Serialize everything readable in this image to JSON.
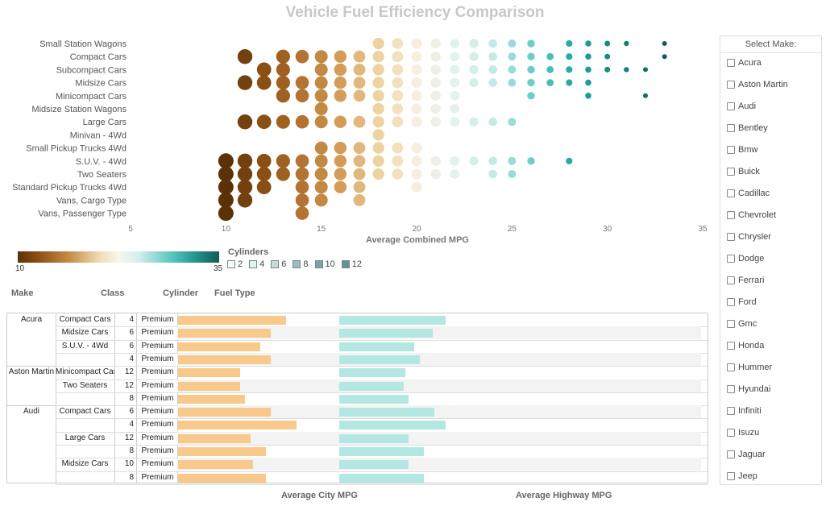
{
  "title": "Vehicle Fuel Efficiency Comparison",
  "chart_data": {
    "type": "scatter",
    "xlabel": "Average Combined MPG",
    "xlim": [
      5,
      35
    ],
    "xticks": [
      5,
      10,
      15,
      20,
      25,
      30,
      35
    ],
    "categories": [
      "Small Station Wagons",
      "Compact Cars",
      "Subcompact Cars",
      "Midsize Cars",
      "Minicompact Cars",
      "Midsize Station Wagons",
      "Large Cars",
      "Minivan - 4Wd",
      "Small Pickup Trucks 4Wd",
      "S.U.V. - 4Wd",
      "Two Seaters",
      "Standard Pickup Trucks 4Wd",
      "Vans, Cargo Type",
      "Vans, Passenger Type"
    ],
    "color_scale": {
      "min": 10,
      "max": 35
    },
    "points": [
      {
        "class": "Small Station Wagons",
        "mpg": [
          18,
          19,
          20,
          21,
          22,
          23,
          24,
          25,
          26,
          28,
          29,
          30,
          31,
          33
        ]
      },
      {
        "class": "Compact Cars",
        "mpg": [
          11,
          13,
          14,
          15,
          16,
          17,
          18,
          19,
          20,
          21,
          22,
          23,
          24,
          25,
          26,
          27,
          28,
          29,
          30,
          33
        ]
      },
      {
        "class": "Subcompact Cars",
        "mpg": [
          12,
          13,
          15,
          16,
          17,
          18,
          19,
          20,
          21,
          22,
          23,
          24,
          25,
          26,
          27,
          28,
          29,
          30,
          31,
          32
        ]
      },
      {
        "class": "Midsize Cars",
        "mpg": [
          11,
          12,
          13,
          14,
          15,
          16,
          17,
          18,
          19,
          20,
          21,
          22,
          23,
          24,
          25,
          26,
          27,
          28,
          29
        ]
      },
      {
        "class": "Minicompact Cars",
        "mpg": [
          13,
          14,
          15,
          16,
          17,
          18,
          19,
          20,
          21,
          22,
          26,
          29,
          32
        ]
      },
      {
        "class": "Midsize Station Wagons",
        "mpg": [
          15,
          18,
          19,
          20,
          21,
          22
        ]
      },
      {
        "class": "Large Cars",
        "mpg": [
          11,
          12,
          13,
          14,
          15,
          16,
          17,
          18,
          19,
          20,
          21,
          22,
          23,
          24,
          25
        ]
      },
      {
        "class": "Minivan - 4Wd",
        "mpg": [
          18
        ]
      },
      {
        "class": "Small Pickup Trucks 4Wd",
        "mpg": [
          15,
          16,
          17,
          18,
          19,
          20
        ]
      },
      {
        "class": "S.U.V. - 4Wd",
        "mpg": [
          10,
          11,
          12,
          13,
          14,
          15,
          16,
          17,
          18,
          19,
          20,
          21,
          22,
          23,
          24,
          25,
          26,
          28
        ]
      },
      {
        "class": "Two Seaters",
        "mpg": [
          10,
          11,
          12,
          13,
          14,
          15,
          16,
          17,
          18,
          19,
          20,
          21,
          22,
          24,
          25
        ]
      },
      {
        "class": "Standard Pickup Trucks 4Wd",
        "mpg": [
          10,
          11,
          12,
          14,
          15,
          16,
          17,
          20
        ]
      },
      {
        "class": "Vans, Cargo Type",
        "mpg": [
          10,
          11,
          14,
          15,
          17
        ]
      },
      {
        "class": "Vans, Passenger Type",
        "mpg": [
          10,
          14
        ]
      }
    ]
  },
  "color_legend": {
    "min": "10",
    "max": "35"
  },
  "cylinders_legend": {
    "title": "Cylinders",
    "items": [
      {
        "label": "2",
        "fill": "#ffffff"
      },
      {
        "label": "4",
        "fill": "#e8f0f0"
      },
      {
        "label": "6",
        "fill": "#c9dada"
      },
      {
        "label": "8",
        "fill": "#9fbcbc"
      },
      {
        "label": "10",
        "fill": "#7fa3a3"
      },
      {
        "label": "12",
        "fill": "#6b9090"
      }
    ]
  },
  "table": {
    "headers": {
      "make": "Make",
      "class": "Class",
      "cylinder": "Cylinder",
      "fuel": "Fuel Type"
    },
    "city_label": "Average City MPG",
    "highway_label": "Average Highway MPG",
    "city_color": "#f8c98a",
    "highway_color": "#b3e8e2",
    "groups": [
      {
        "make": "Acura",
        "rows": [
          {
            "class": "Compact Cars",
            "cyl": "4",
            "fuel": "Premium",
            "city": 21,
            "hwy": 29
          },
          {
            "class": "Midsize Cars",
            "cyl": "6",
            "fuel": "Premium",
            "city": 18,
            "hwy": 25.5
          },
          {
            "class": "S.U.V. - 4Wd",
            "cyl": "6",
            "fuel": "Premium",
            "city": 16,
            "hwy": 20.5
          },
          {
            "class": "",
            "cyl": "4",
            "fuel": "Premium",
            "city": 18,
            "hwy": 22
          }
        ]
      },
      {
        "make": "Aston Martin",
        "rows": [
          {
            "class": "Minicompact Cars",
            "cyl": "12",
            "fuel": "Premium",
            "city": 12,
            "hwy": 18
          },
          {
            "class": "Two Seaters",
            "cyl": "12",
            "fuel": "Premium",
            "city": 12,
            "hwy": 17.5
          },
          {
            "class": "",
            "cyl": "8",
            "fuel": "Premium",
            "city": 13,
            "hwy": 19
          }
        ]
      },
      {
        "make": "Audi",
        "rows": [
          {
            "class": "Compact Cars",
            "cyl": "6",
            "fuel": "Premium",
            "city": 18,
            "hwy": 26
          },
          {
            "class": "",
            "cyl": "4",
            "fuel": "Premium",
            "city": 23,
            "hwy": 29
          },
          {
            "class": "Large Cars",
            "cyl": "12",
            "fuel": "Premium",
            "city": 14,
            "hwy": 19
          },
          {
            "class": "",
            "cyl": "8",
            "fuel": "Premium",
            "city": 17,
            "hwy": 23
          }
        ]
      },
      {
        "make": "",
        "rows": [
          {
            "class": "Midsize Cars",
            "cyl": "10",
            "fuel": "Premium",
            "city": 14.5,
            "hwy": 19
          },
          {
            "class": "",
            "cyl": "8",
            "fuel": "Premium",
            "city": 17,
            "hwy": 23
          }
        ]
      }
    ]
  },
  "make_panel": {
    "title": "Select Make:",
    "items": [
      "Acura",
      "Aston Martin",
      "Audi",
      "Bentley",
      "Bmw",
      "Buick",
      "Cadillac",
      "Chevrolet",
      "Chrysler",
      "Dodge",
      "Ferrari",
      "Ford",
      "Gmc",
      "Honda",
      "Hummer",
      "Hyundai",
      "Infiniti",
      "Isuzu",
      "Jaguar",
      "Jeep"
    ]
  }
}
